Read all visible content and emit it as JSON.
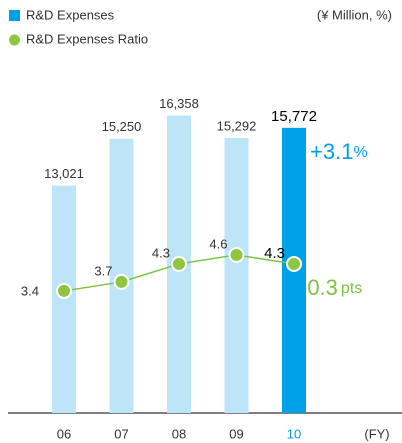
{
  "chart_data": {
    "type": "bar_line",
    "legend": [
      "R&D Expenses",
      "R&D Expenses Ratio"
    ],
    "unit_note": "(¥ Million, %)",
    "x_label": "(FY)",
    "categories": [
      "06",
      "07",
      "08",
      "09",
      "10"
    ],
    "series": [
      {
        "name": "R&D Expenses",
        "type": "bar",
        "color": "#00a0e9",
        "colors": [
          "#bde4f7",
          "#bde4f7",
          "#bde4f7",
          "#bde4f7",
          "#00a0e9"
        ],
        "values": [
          13021,
          15250,
          16358,
          15292,
          15772
        ],
        "value_labels": [
          "13,021",
          "15,250",
          "16,358",
          "15,292",
          "15,772"
        ]
      },
      {
        "name": "R&D Expenses Ratio",
        "type": "line",
        "axis": "y2",
        "color": "#7cc242",
        "values": [
          3.4,
          3.7,
          4.3,
          4.6,
          4.3
        ]
      }
    ],
    "highlight_color": "#00a0e9",
    "ylim": [
      2200,
      19000
    ],
    "y2lim": [
      -0.67,
      11.1
    ],
    "annotations": [
      {
        "text": "+3.1",
        "unit": "%",
        "color": "#00a0e9"
      },
      {
        "text": "-0.3",
        "unit": "pts",
        "color": "#7cc242"
      }
    ]
  }
}
